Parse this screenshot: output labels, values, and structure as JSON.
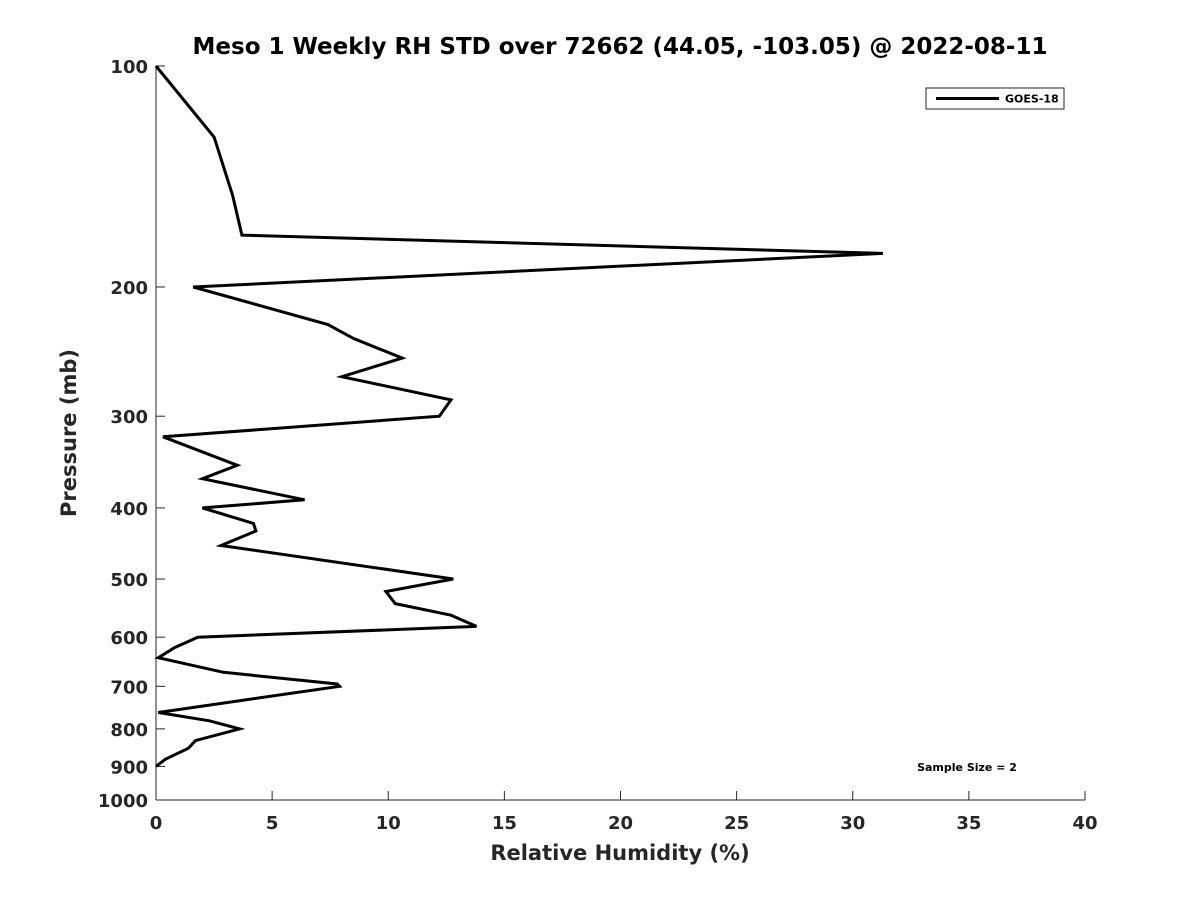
{
  "chart_data": {
    "type": "line",
    "title": "Meso 1 Weekly RH STD over 72662 (44.05, -103.05) @ 2022-08-11",
    "xlabel": "Relative Humidity (%)",
    "ylabel": "Pressure (mb)",
    "xlim": [
      0,
      40
    ],
    "ylim": [
      100,
      1000
    ],
    "yscale": "log",
    "y_reversed": true,
    "xticks": [
      0,
      5,
      10,
      15,
      20,
      25,
      30,
      35,
      40
    ],
    "xtick_labels": [
      "0",
      "5",
      "10",
      "15",
      "20",
      "25",
      "30",
      "35",
      "40"
    ],
    "yticks": [
      100,
      200,
      300,
      400,
      500,
      600,
      700,
      800,
      900,
      1000
    ],
    "ytick_labels": [
      "100",
      "200",
      "300",
      "400",
      "500",
      "600",
      "700",
      "800",
      "900",
      "1000"
    ],
    "grid": false,
    "legend_position": "top-right",
    "annotation": "Sample Size = 2",
    "series": [
      {
        "name": "GOES-18",
        "color": "#000000",
        "x": [
          0,
          2.5,
          3.3,
          3.7,
          31.3,
          1.6,
          7.4,
          8.5,
          10.6,
          8.0,
          12.7,
          12.2,
          0.3,
          3.5,
          2.0,
          6.4,
          2.0,
          4.2,
          4.3,
          2.8,
          12.8,
          9.9,
          10.3,
          12.7,
          13.8,
          1.8,
          0.8,
          0.1,
          2.9,
          7.8,
          7.9,
          0.1,
          2.3,
          3.6,
          1.7,
          1.4,
          0.4,
          0
        ],
        "y": [
          100,
          125,
          150,
          170,
          180,
          200,
          225,
          235,
          250,
          265,
          285,
          300,
          320,
          350,
          365,
          390,
          400,
          420,
          430,
          450,
          500,
          520,
          540,
          560,
          580,
          600,
          620,
          640,
          670,
          695,
          700,
          760,
          780,
          800,
          830,
          850,
          880,
          900
        ]
      }
    ]
  }
}
